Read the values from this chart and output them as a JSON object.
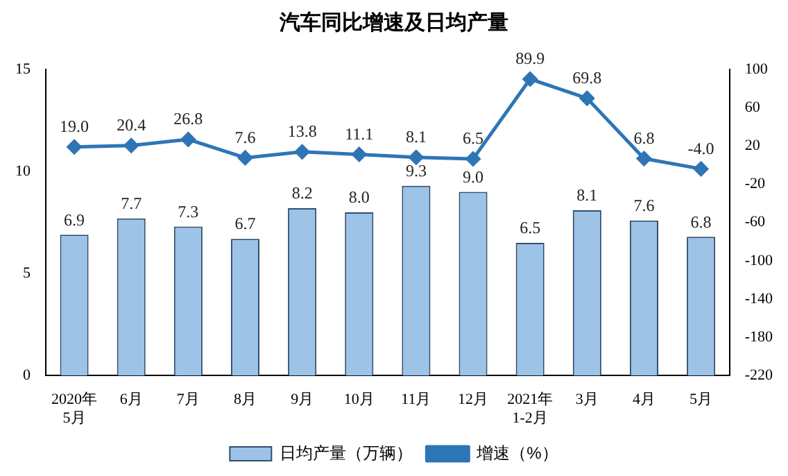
{
  "chart_data": {
    "type": "bar",
    "title": "汽车同比增速及日均产量",
    "categories": [
      "2020年\n5月",
      "6月",
      "7月",
      "8月",
      "9月",
      "10月",
      "11月",
      "12月",
      "2021年\n1-2月",
      "3月",
      "4月",
      "5月"
    ],
    "series": [
      {
        "name": "日均产量（万辆）",
        "color": "#9dc3e6",
        "values": [
          6.9,
          7.7,
          7.3,
          6.7,
          8.2,
          8.0,
          9.3,
          9.0,
          6.5,
          8.1,
          7.6,
          6.8
        ],
        "value_labels": [
          "6.9",
          "7.7",
          "7.3",
          "6.7",
          "8.2",
          "8.0",
          "9.3",
          "9.0",
          "6.5",
          "8.1",
          "7.6",
          "6.8"
        ]
      },
      {
        "name": "增速（%）",
        "type": "line",
        "axis": "y2",
        "color": "#2e75b6",
        "marker": "diamond",
        "values": [
          19.0,
          20.4,
          26.8,
          7.6,
          13.8,
          11.1,
          8.1,
          6.5,
          89.9,
          69.8,
          6.8,
          -4.0
        ],
        "value_labels": [
          "19.0",
          "20.4",
          "26.8",
          "7.6",
          "13.8",
          "11.1",
          "8.1",
          "6.5",
          "89.9",
          "69.8",
          "6.8",
          "-4.0"
        ]
      }
    ],
    "ylim": [
      0,
      15
    ],
    "yticks": [
      0,
      5,
      10,
      15
    ],
    "y2lim": [
      -220,
      100
    ],
    "y2ticks": [
      -220,
      -180,
      -140,
      -100,
      -60,
      -20,
      20,
      60,
      100
    ],
    "grid": false,
    "legend": "bottom"
  }
}
